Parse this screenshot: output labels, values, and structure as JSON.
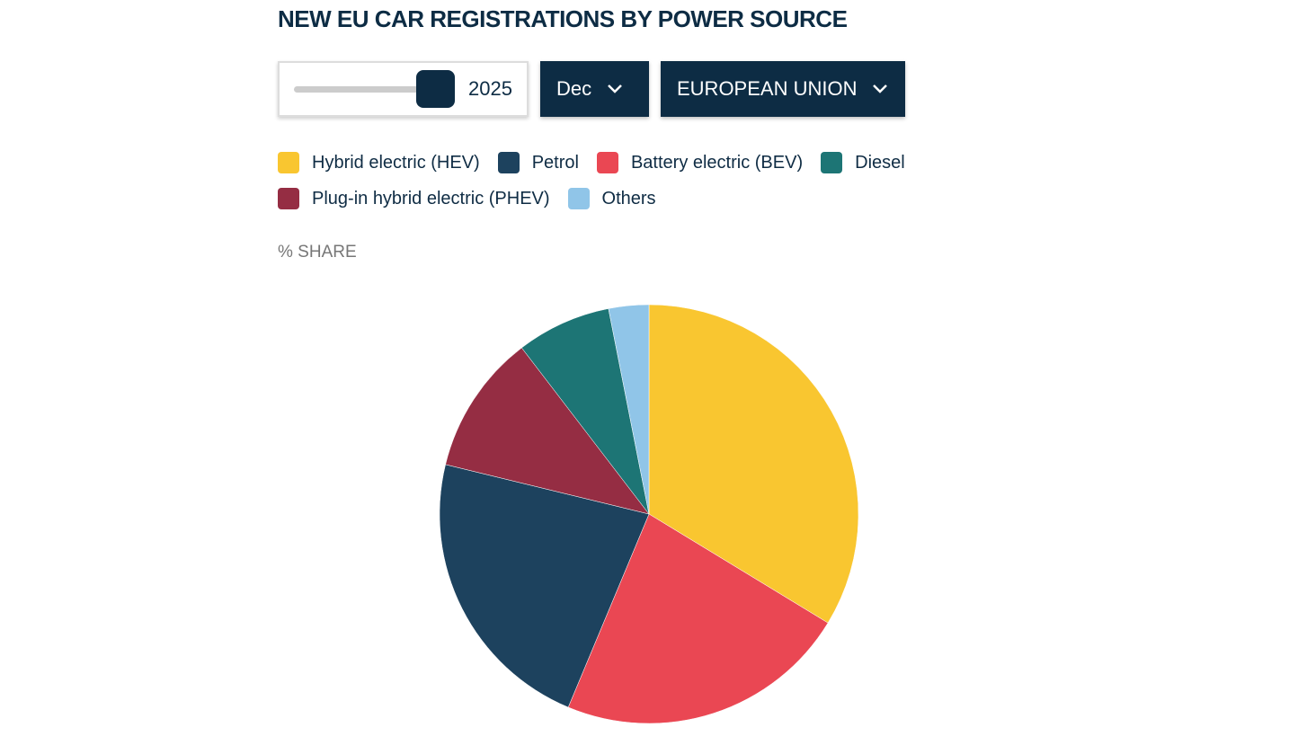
{
  "chart_data": {
    "type": "pie",
    "title": "NEW EU CAR REGISTRATIONS BY POWER SOURCE",
    "controls": {
      "year": "2025",
      "month": "Dec",
      "region": "EUROPEAN UNION"
    },
    "unit_label": "% SHARE",
    "categories": [
      "Hybrid electric (HEV)",
      "Battery electric (BEV)",
      "Petrol",
      "Plug-in hybrid electric (PHEV)",
      "Diesel",
      "Others"
    ],
    "values": [
      33.7,
      22.6,
      22.5,
      10.8,
      7.3,
      3.1
    ],
    "colors": [
      "#f9c630",
      "#ea4753",
      "#1d425e",
      "#952d43",
      "#1d7575",
      "#90c5e8"
    ]
  }
}
